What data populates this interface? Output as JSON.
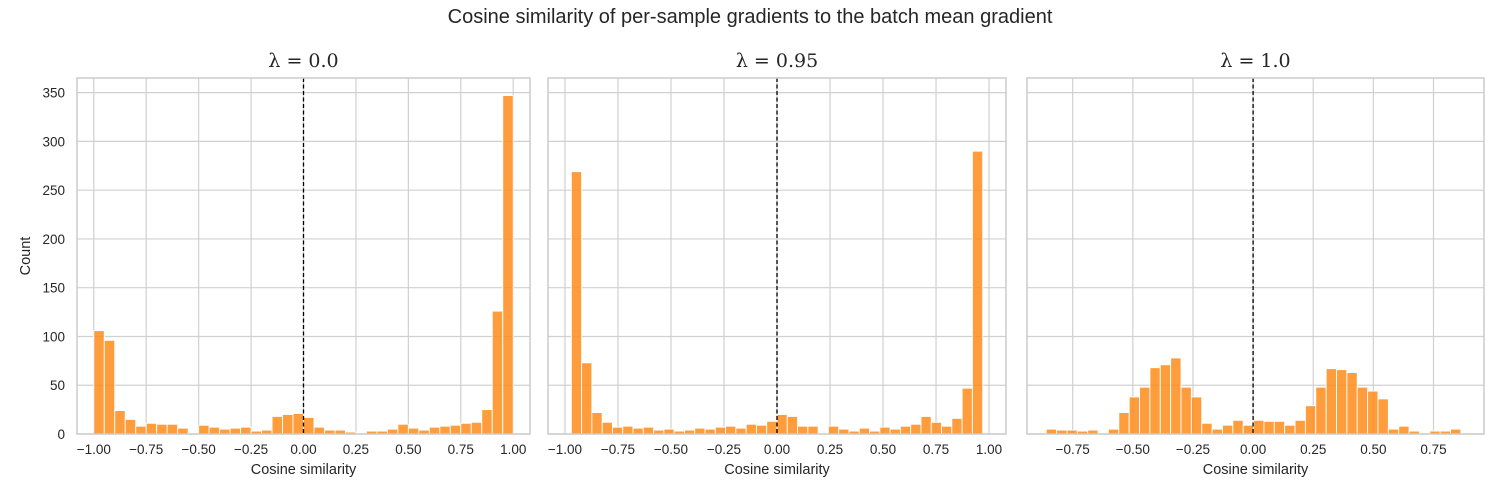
{
  "title": "Cosine similarity of per-sample gradients to the batch mean gradient",
  "colors": {
    "bar": "#ff8c1a",
    "bar_edge": "#ffffff",
    "grid": "#d0d0d0",
    "frame": "#cccccc",
    "vline": "#000000"
  },
  "chart_data": [
    {
      "type": "bar",
      "panel_title": "λ = 0.0",
      "lambda": "0.0",
      "xlabel": "Cosine similarity",
      "ylabel": "Count",
      "xlim": [
        -1.08,
        1.08
      ],
      "ylim": [
        0,
        365
      ],
      "xticks": [
        -1.0,
        -0.75,
        -0.5,
        -0.25,
        0.0,
        0.25,
        0.5,
        0.75,
        1.0
      ],
      "xtick_labels": [
        "−1.00",
        "−0.75",
        "−0.50",
        "−0.25",
        "0.00",
        "0.25",
        "0.50",
        "0.75",
        "1.00"
      ],
      "yticks": [
        0,
        50,
        100,
        150,
        200,
        250,
        300,
        350
      ],
      "bin_start": -1.0,
      "bin_width": 0.05,
      "values": [
        106,
        96,
        24,
        15,
        8,
        11,
        10,
        10,
        6,
        0,
        9,
        7,
        5,
        6,
        7,
        3,
        4,
        18,
        20,
        21,
        17,
        7,
        4,
        4,
        2,
        0,
        3,
        3,
        5,
        10,
        6,
        4,
        7,
        8,
        9,
        11,
        12,
        25,
        126,
        347
      ],
      "vline_x": 0.0,
      "grid": true
    },
    {
      "type": "bar",
      "panel_title": "λ = 0.95",
      "lambda": "0.95",
      "xlabel": "Cosine similarity",
      "ylabel": "",
      "xlim": [
        -1.08,
        1.08
      ],
      "ylim": [
        0,
        365
      ],
      "xticks": [
        -1.0,
        -0.75,
        -0.5,
        -0.25,
        0.0,
        0.25,
        0.5,
        0.75,
        1.0
      ],
      "xtick_labels": [
        "−1.00",
        "−0.75",
        "−0.50",
        "−0.25",
        "0.00",
        "0.25",
        "0.50",
        "0.75",
        "1.00"
      ],
      "yticks": [
        0,
        50,
        100,
        150,
        200,
        250,
        300,
        350
      ],
      "bin_start": -0.97,
      "bin_width": 0.0485,
      "values": [
        269,
        73,
        22,
        12,
        7,
        8,
        6,
        7,
        4,
        5,
        3,
        4,
        6,
        5,
        7,
        8,
        6,
        10,
        9,
        13,
        20,
        18,
        8,
        8,
        1,
        8,
        5,
        3,
        6,
        3,
        7,
        5,
        8,
        10,
        18,
        12,
        8,
        16,
        47,
        290
      ],
      "vline_x": 0.0,
      "grid": true
    },
    {
      "type": "bar",
      "panel_title": "λ = 1.0",
      "lambda": "1.0",
      "xlabel": "Cosine similarity",
      "ylabel": "",
      "xlim": [
        -0.94,
        0.96
      ],
      "ylim": [
        0,
        365
      ],
      "xticks": [
        -0.75,
        -0.5,
        -0.25,
        0.0,
        0.25,
        0.5,
        0.75
      ],
      "xtick_labels": [
        "−0.75",
        "−0.50",
        "−0.25",
        "0.00",
        "0.25",
        "0.50",
        "0.75"
      ],
      "yticks": [
        0,
        50,
        100,
        150,
        200,
        250,
        300,
        350
      ],
      "bin_start": -0.86,
      "bin_width": 0.0431,
      "values": [
        5,
        4,
        4,
        3,
        4,
        0,
        5,
        22,
        38,
        48,
        68,
        71,
        78,
        48,
        38,
        11,
        5,
        9,
        14,
        9,
        14,
        13,
        13,
        9,
        14,
        29,
        48,
        67,
        66,
        63,
        48,
        44,
        36,
        5,
        8,
        3,
        0,
        3,
        3,
        5
      ],
      "vline_x": 0.0,
      "grid": true
    }
  ]
}
